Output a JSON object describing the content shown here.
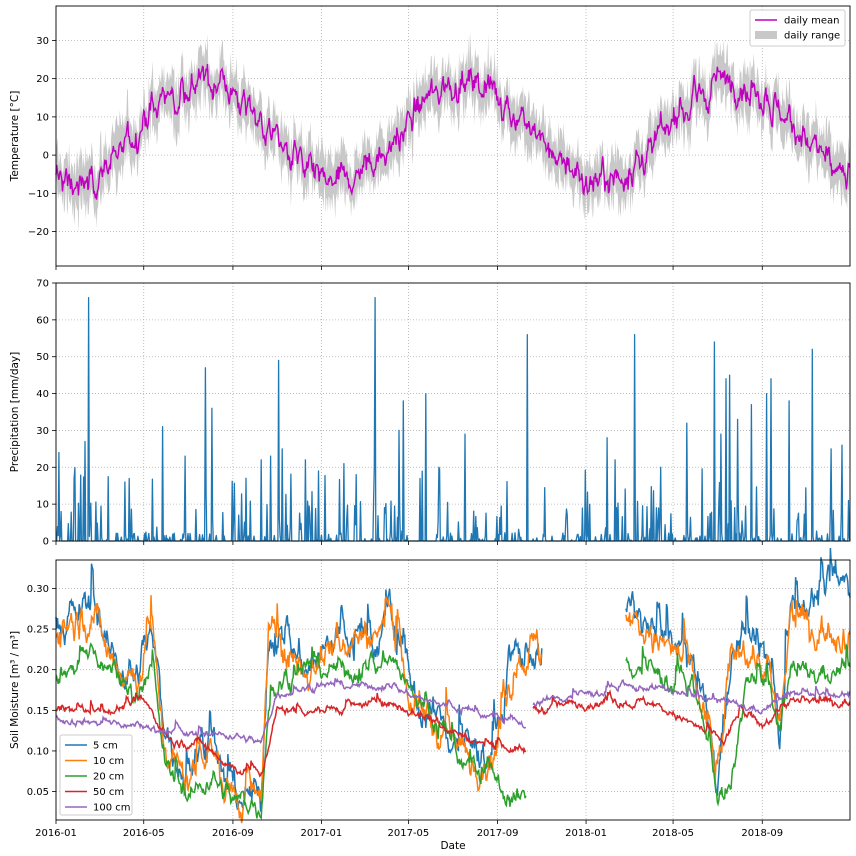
{
  "chart_data": [
    {
      "type": "line",
      "ylabel": "Temperature [$^\\circ$C]",
      "ylim": [
        -29,
        39
      ],
      "yticks": [
        -20,
        -10,
        0,
        10,
        20,
        30
      ],
      "grid": true,
      "legend": {
        "placement": "top-right",
        "entries": [
          "daily mean",
          "daily range"
        ]
      },
      "x_format": "date",
      "x_range": [
        "2016-01-01",
        "2018-12-31"
      ],
      "seasonal_model": {
        "annual_mean": 6,
        "amplitude": 13.5,
        "peak_date": "2016-07-20"
      },
      "series": [
        {
          "name": "daily mean",
          "color": "#bf00bf",
          "kind": "line"
        },
        {
          "name": "daily range",
          "color": "#c8c8c8",
          "kind": "band"
        }
      ]
    },
    {
      "type": "bar",
      "ylabel": "Precipitation [mm/day]",
      "ylim": [
        0,
        70
      ],
      "yticks": [
        0,
        10,
        20,
        30,
        40,
        50,
        60,
        70
      ],
      "grid": true,
      "color": "#1f77b4",
      "peaks": [
        {
          "date": "2016-01-05",
          "value": 24
        },
        {
          "date": "2016-01-08",
          "value": 8
        },
        {
          "date": "2016-01-26",
          "value": 17
        },
        {
          "date": "2016-02-10",
          "value": 27
        },
        {
          "date": "2016-02-15",
          "value": 66
        },
        {
          "date": "2016-04-05",
          "value": 16
        },
        {
          "date": "2016-05-27",
          "value": 31
        },
        {
          "date": "2016-06-27",
          "value": 23
        },
        {
          "date": "2016-07-25",
          "value": 47
        },
        {
          "date": "2016-08-03",
          "value": 36
        },
        {
          "date": "2016-09-19",
          "value": 17
        },
        {
          "date": "2016-10-10",
          "value": 22
        },
        {
          "date": "2016-10-23",
          "value": 23
        },
        {
          "date": "2016-11-03",
          "value": 49
        },
        {
          "date": "2016-11-08",
          "value": 25
        },
        {
          "date": "2016-12-10",
          "value": 22
        },
        {
          "date": "2016-12-28",
          "value": 19
        },
        {
          "date": "2017-02-01",
          "value": 21
        },
        {
          "date": "2017-02-18",
          "value": 18
        },
        {
          "date": "2017-03-16",
          "value": 66
        },
        {
          "date": "2017-04-18",
          "value": 30
        },
        {
          "date": "2017-04-24",
          "value": 38
        },
        {
          "date": "2017-05-25",
          "value": 40
        },
        {
          "date": "2017-06-12",
          "value": 20
        },
        {
          "date": "2017-07-18",
          "value": 29
        },
        {
          "date": "2017-10-12",
          "value": 56
        },
        {
          "date": "2018-01-30",
          "value": 28
        },
        {
          "date": "2018-02-10",
          "value": 22
        },
        {
          "date": "2018-03-09",
          "value": 56
        },
        {
          "date": "2018-04-14",
          "value": 20
        },
        {
          "date": "2018-05-20",
          "value": 32
        },
        {
          "date": "2018-06-27",
          "value": 54
        },
        {
          "date": "2018-07-06",
          "value": 29
        },
        {
          "date": "2018-07-13",
          "value": 44
        },
        {
          "date": "2018-07-18",
          "value": 45
        },
        {
          "date": "2018-07-29",
          "value": 33
        },
        {
          "date": "2018-08-17",
          "value": 37
        },
        {
          "date": "2018-09-07",
          "value": 40
        },
        {
          "date": "2018-09-13",
          "value": 44
        },
        {
          "date": "2018-10-08",
          "value": 38
        },
        {
          "date": "2018-11-09",
          "value": 52
        },
        {
          "date": "2018-12-05",
          "value": 25
        },
        {
          "date": "2018-12-20",
          "value": 26
        },
        {
          "date": "2018-12-29",
          "value": 11
        }
      ]
    },
    {
      "type": "line",
      "xlabel": "Date",
      "ylabel": "Soil Moisture [m$^3$ / m$^3$]",
      "ylim": [
        0.015,
        0.335
      ],
      "yticks": [
        0.05,
        0.1,
        0.15,
        0.2,
        0.25,
        0.3
      ],
      "grid": true,
      "legend": {
        "placement": "bottom-left"
      },
      "x_format": "date",
      "x_range": [
        "2016-01-01",
        "2018-12-31"
      ],
      "xticks": [
        "2016-01",
        "2016-05",
        "2016-09",
        "2017-01",
        "2017-05",
        "2017-09",
        "2018-01",
        "2018-05",
        "2018-09"
      ],
      "series": [
        {
          "name": "5 cm",
          "color": "#1f77b4",
          "noise": 0.02,
          "points": [
            [
              "2016-01-01",
              0.26
            ],
            [
              "2016-02-20",
              0.28
            ],
            [
              "2016-03-15",
              0.22
            ],
            [
              "2016-04-20",
              0.19
            ],
            [
              "2016-05-10",
              0.25
            ],
            [
              "2016-06-01",
              0.12
            ],
            [
              "2016-07-01",
              0.07
            ],
            [
              "2016-08-01",
              0.13
            ],
            [
              "2016-08-20",
              0.05
            ],
            [
              "2016-10-10",
              0.04
            ],
            [
              "2016-10-20",
              0.25
            ],
            [
              "2016-11-15",
              0.23
            ],
            [
              "2016-12-15",
              0.2
            ],
            [
              "2017-01-25",
              0.24
            ],
            [
              "2017-03-20",
              0.23
            ],
            [
              "2017-04-05",
              0.27
            ],
            [
              "2017-05-05",
              0.17
            ],
            [
              "2017-06-20",
              0.13
            ],
            [
              "2017-07-20",
              0.1
            ],
            [
              "2017-09-01",
              0.1
            ],
            [
              "2017-09-25",
              0.21
            ],
            [
              "2017-10-15",
              0.23
            ],
            [
              "2017-11-01",
              0.22
            ]
          ]
        },
        {
          "name": "10 cm",
          "color": "#ff7f0e",
          "noise": 0.02,
          "points": [
            [
              "2016-01-01",
              0.25
            ],
            [
              "2016-02-20",
              0.27
            ],
            [
              "2016-03-15",
              0.22
            ],
            [
              "2016-04-20",
              0.19
            ],
            [
              "2016-05-10",
              0.24
            ],
            [
              "2016-06-01",
              0.1
            ],
            [
              "2016-07-01",
              0.06
            ],
            [
              "2016-08-01",
              0.12
            ],
            [
              "2016-08-20",
              0.05
            ],
            [
              "2016-10-10",
              0.04
            ],
            [
              "2016-10-20",
              0.24
            ],
            [
              "2016-11-15",
              0.22
            ],
            [
              "2016-12-15",
              0.2
            ],
            [
              "2017-01-25",
              0.24
            ],
            [
              "2017-03-20",
              0.24
            ],
            [
              "2017-04-05",
              0.27
            ],
            [
              "2017-05-05",
              0.16
            ],
            [
              "2017-06-20",
              0.12
            ],
            [
              "2017-07-20",
              0.09
            ],
            [
              "2017-09-01",
              0.1
            ],
            [
              "2017-09-25",
              0.21
            ],
            [
              "2017-10-15",
              0.23
            ],
            [
              "2017-11-01",
              0.22
            ]
          ]
        },
        {
          "name": "20 cm",
          "color": "#2ca02c",
          "noise": 0.012,
          "points": [
            [
              "2016-01-01",
              0.19
            ],
            [
              "2016-02-20",
              0.22
            ],
            [
              "2016-03-15",
              0.2
            ],
            [
              "2016-04-20",
              0.17
            ],
            [
              "2016-05-10",
              0.2
            ],
            [
              "2016-06-01",
              0.08
            ],
            [
              "2016-07-01",
              0.04
            ],
            [
              "2016-08-01",
              0.07
            ],
            [
              "2016-09-01",
              0.04
            ],
            [
              "2016-10-10",
              0.03
            ],
            [
              "2016-10-20",
              0.16
            ],
            [
              "2016-11-15",
              0.19
            ],
            [
              "2016-12-15",
              0.2
            ],
            [
              "2017-01-25",
              0.2
            ],
            [
              "2017-03-20",
              0.2
            ],
            [
              "2017-04-05",
              0.22
            ],
            [
              "2017-05-05",
              0.17
            ],
            [
              "2017-06-20",
              0.12
            ],
            [
              "2017-07-20",
              0.08
            ],
            [
              "2017-09-01",
              0.06
            ],
            [
              "2017-09-25",
              0.04
            ],
            [
              "2017-10-10",
              0.04
            ]
          ]
        },
        {
          "name": "50 cm",
          "color": "#d62728",
          "noise": 0.005,
          "points": [
            [
              "2016-01-01",
              0.15
            ],
            [
              "2016-03-15",
              0.15
            ],
            [
              "2016-05-01",
              0.16
            ],
            [
              "2016-06-10",
              0.11
            ],
            [
              "2016-07-20",
              0.11
            ],
            [
              "2016-09-01",
              0.08
            ],
            [
              "2016-10-10",
              0.07
            ],
            [
              "2016-11-01",
              0.15
            ],
            [
              "2017-01-01",
              0.15
            ],
            [
              "2017-04-01",
              0.16
            ],
            [
              "2017-06-01",
              0.14
            ],
            [
              "2017-08-01",
              0.11
            ],
            [
              "2017-10-10",
              0.1
            ]
          ]
        },
        {
          "name": "100 cm",
          "color": "#9467bd",
          "noise": 0.004,
          "points": [
            [
              "2016-01-01",
              0.14
            ],
            [
              "2016-05-01",
              0.13
            ],
            [
              "2016-07-01",
              0.12
            ],
            [
              "2016-09-01",
              0.12
            ],
            [
              "2016-10-10",
              0.11
            ],
            [
              "2016-11-01",
              0.17
            ],
            [
              "2017-01-01",
              0.18
            ],
            [
              "2017-04-01",
              0.18
            ],
            [
              "2017-06-01",
              0.16
            ],
            [
              "2017-09-01",
              0.14
            ],
            [
              "2017-10-10",
              0.13
            ]
          ]
        }
      ],
      "series_2018": [
        {
          "name": "5 cm",
          "points": [
            [
              "2018-02-25",
              0.28
            ],
            [
              "2018-04-15",
              0.24
            ],
            [
              "2018-05-15",
              0.22
            ],
            [
              "2018-06-20",
              0.13
            ],
            [
              "2018-07-01",
              0.06
            ],
            [
              "2018-07-20",
              0.22
            ],
            [
              "2018-08-10",
              0.24
            ],
            [
              "2018-09-10",
              0.21
            ],
            [
              "2018-09-25",
              0.11
            ],
            [
              "2018-10-10",
              0.28
            ],
            [
              "2018-11-15",
              0.29
            ],
            [
              "2018-12-31",
              0.3
            ]
          ]
        },
        {
          "name": "10 cm",
          "points": [
            [
              "2018-02-25",
              0.27
            ],
            [
              "2018-04-15",
              0.23
            ],
            [
              "2018-05-15",
              0.21
            ],
            [
              "2018-06-20",
              0.13
            ],
            [
              "2018-07-01",
              0.06
            ],
            [
              "2018-07-20",
              0.21
            ],
            [
              "2018-08-10",
              0.23
            ],
            [
              "2018-09-10",
              0.2
            ],
            [
              "2018-09-25",
              0.11
            ],
            [
              "2018-10-10",
              0.26
            ],
            [
              "2018-11-15",
              0.25
            ],
            [
              "2018-12-31",
              0.25
            ]
          ]
        },
        {
          "name": "20 cm",
          "points": [
            [
              "2018-02-25",
              0.21
            ],
            [
              "2018-04-15",
              0.19
            ],
            [
              "2018-05-15",
              0.18
            ],
            [
              "2018-06-20",
              0.12
            ],
            [
              "2018-07-01",
              0.05
            ],
            [
              "2018-07-20",
              0.05
            ],
            [
              "2018-08-10",
              0.19
            ],
            [
              "2018-09-10",
              0.18
            ],
            [
              "2018-09-25",
              0.12
            ],
            [
              "2018-10-10",
              0.19
            ],
            [
              "2018-12-31",
              0.2
            ]
          ]
        },
        {
          "name": "50 cm",
          "points": [
            [
              "2017-10-20",
              0.15
            ],
            [
              "2018-01-01",
              0.16
            ],
            [
              "2018-04-01",
              0.16
            ],
            [
              "2018-06-01",
              0.13
            ],
            [
              "2018-07-10",
              0.11
            ],
            [
              "2018-08-01",
              0.15
            ],
            [
              "2018-09-01",
              0.13
            ],
            [
              "2018-10-01",
              0.16
            ],
            [
              "2018-12-31",
              0.16
            ]
          ]
        },
        {
          "name": "100 cm",
          "points": [
            [
              "2017-10-20",
              0.16
            ],
            [
              "2018-01-01",
              0.17
            ],
            [
              "2018-04-01",
              0.18
            ],
            [
              "2018-07-01",
              0.16
            ],
            [
              "2018-09-01",
              0.15
            ],
            [
              "2018-10-10",
              0.17
            ],
            [
              "2018-12-31",
              0.17
            ]
          ]
        }
      ]
    }
  ]
}
